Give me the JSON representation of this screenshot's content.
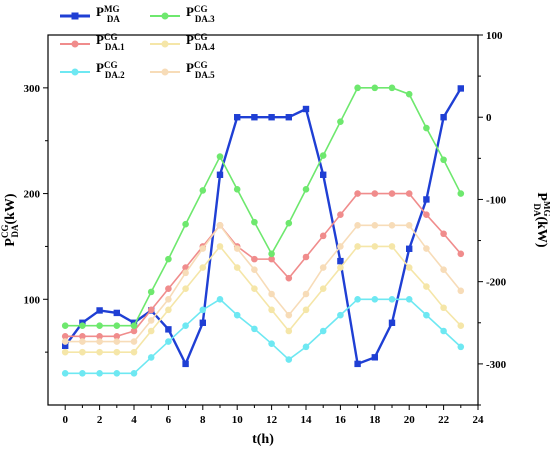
{
  "chart_data": {
    "type": "line",
    "x": [
      0,
      1,
      2,
      3,
      4,
      5,
      6,
      7,
      8,
      9,
      10,
      11,
      12,
      13,
      14,
      15,
      16,
      17,
      18,
      19,
      20,
      21,
      22,
      23
    ],
    "xlabel": "t(h)",
    "xlim": [
      -1,
      24
    ],
    "xticks": [
      "0",
      "2",
      "4",
      "6",
      "8",
      "10",
      "12",
      "14",
      "16",
      "18",
      "20",
      "22",
      "24"
    ],
    "y_left": {
      "label_main": "P",
      "label_sup": "CG",
      "label_sub": "DA",
      "label_unit": "(kW)",
      "ylim": [
        0,
        350
      ],
      "ticks": [
        "100",
        "200",
        "300"
      ]
    },
    "y_right": {
      "label_main": "P",
      "label_sup": "MG",
      "label_sub": "DA",
      "label_unit": "(kW)",
      "ylim": [
        -350,
        100
      ],
      "ticks": [
        "-300",
        "-200",
        "-100",
        "0",
        "100"
      ]
    },
    "legend_position": "top-left",
    "series": [
      {
        "name_main": "P",
        "name_sup": "MG",
        "name_sub": "DA",
        "axis": "right",
        "color": "#1f3fd4",
        "marker": "square",
        "values": [
          -278,
          -250,
          -235,
          -238,
          -250,
          -235,
          -258,
          -300,
          -250,
          -70,
          0,
          0,
          0,
          0,
          10,
          -70,
          -175,
          -300,
          -292,
          -250,
          -160,
          -100,
          0,
          35
        ]
      },
      {
        "name_main": "P",
        "name_sup": "CG",
        "name_sub": "DA.1",
        "axis": "left",
        "color": "#f08c8c",
        "marker": "circle",
        "values": [
          65,
          65,
          65,
          65,
          70,
          90,
          110,
          130,
          150,
          170,
          150,
          138,
          138,
          120,
          140,
          160,
          180,
          200,
          200,
          200,
          200,
          180,
          162,
          143
        ]
      },
      {
        "name_main": "P",
        "name_sup": "CG",
        "name_sub": "DA.2",
        "axis": "left",
        "color": "#6ee8f2",
        "marker": "circle",
        "values": [
          30,
          30,
          30,
          30,
          30,
          45,
          60,
          75,
          90,
          100,
          85,
          72,
          58,
          43,
          55,
          70,
          85,
          100,
          100,
          100,
          100,
          85,
          70,
          55
        ]
      },
      {
        "name_main": "P",
        "name_sup": "CG",
        "name_sub": "DA.3",
        "axis": "left",
        "color": "#6ee86e",
        "marker": "circle",
        "values": [
          75,
          75,
          75,
          75,
          75,
          107,
          138,
          171,
          203,
          235,
          204,
          173,
          143,
          172,
          204,
          236,
          268,
          300,
          300,
          300,
          294,
          262,
          232,
          200
        ]
      },
      {
        "name_main": "P",
        "name_sup": "CG",
        "name_sub": "DA.4",
        "axis": "left",
        "color": "#f5e6a8",
        "marker": "circle",
        "values": [
          50,
          50,
          50,
          50,
          50,
          70,
          90,
          110,
          130,
          150,
          130,
          110,
          90,
          70,
          90,
          110,
          130,
          150,
          150,
          150,
          130,
          112,
          92,
          75
        ]
      },
      {
        "name_main": "P",
        "name_sup": "CG",
        "name_sub": "DA.5",
        "axis": "left",
        "color": "#f7dcb8",
        "marker": "circle",
        "values": [
          60,
          60,
          60,
          60,
          60,
          80,
          100,
          125,
          148,
          170,
          148,
          128,
          105,
          85,
          105,
          130,
          150,
          170,
          170,
          170,
          170,
          148,
          128,
          108
        ]
      }
    ]
  }
}
